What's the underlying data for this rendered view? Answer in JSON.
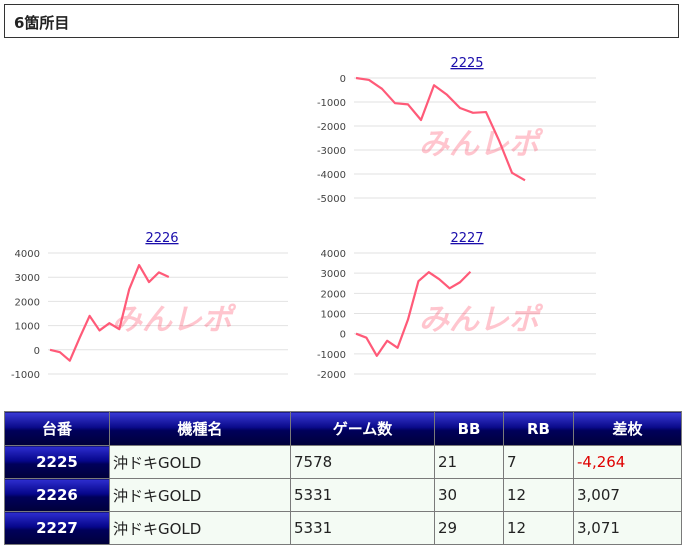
{
  "section": {
    "title": "6箇所目"
  },
  "charts": [
    {
      "id": "chart-2225",
      "title": "2225",
      "type": "line",
      "yticks": [
        "0",
        "-1000",
        "-2000",
        "-3000",
        "-4000",
        "-5000"
      ],
      "ylim": [
        -5000,
        0
      ],
      "values": [
        0,
        -80,
        -450,
        -1050,
        -1100,
        -1750,
        -300,
        -700,
        -1250,
        -1450,
        -1420,
        -2600,
        -3950,
        -4264
      ],
      "watermark": "みんレポ",
      "line_color": "#ff5a78"
    },
    {
      "id": "chart-2226",
      "title": "2226",
      "type": "line",
      "yticks": [
        "4000",
        "3000",
        "2000",
        "1000",
        "0",
        "-1000"
      ],
      "ylim": [
        -1000,
        4000
      ],
      "values": [
        0,
        -100,
        -450,
        500,
        1400,
        800,
        1100,
        850,
        2500,
        3500,
        2800,
        3200,
        3007
      ],
      "watermark": "みんレポ",
      "line_color": "#ff5a78"
    },
    {
      "id": "chart-2227",
      "title": "2227",
      "type": "line",
      "yticks": [
        "4000",
        "3000",
        "2000",
        "1000",
        "0",
        "-1000",
        "-2000"
      ],
      "ylim": [
        -2000,
        4000
      ],
      "values": [
        0,
        -200,
        -1100,
        -350,
        -700,
        700,
        2600,
        3050,
        2700,
        2250,
        2550,
        3071
      ],
      "watermark": "みんレポ",
      "line_color": "#ff5a78"
    }
  ],
  "table": {
    "headers": [
      "台番",
      "機種名",
      "ゲーム数",
      "BB",
      "RB",
      "差枚"
    ],
    "rows": [
      {
        "id": "2225",
        "machine": "沖ドキGOLD",
        "games": "7578",
        "bb": "21",
        "rb": "7",
        "diff": "-4,264"
      },
      {
        "id": "2226",
        "machine": "沖ドキGOLD",
        "games": "5331",
        "bb": "30",
        "rb": "12",
        "diff": "3,007"
      },
      {
        "id": "2227",
        "machine": "沖ドキGOLD",
        "games": "5331",
        "bb": "29",
        "rb": "12",
        "diff": "3,071"
      }
    ]
  },
  "colors": {
    "header_bg": "#00005a",
    "negative": "#e00000",
    "link": "#1a0dab",
    "cell_bg": "#f4fbf4"
  }
}
